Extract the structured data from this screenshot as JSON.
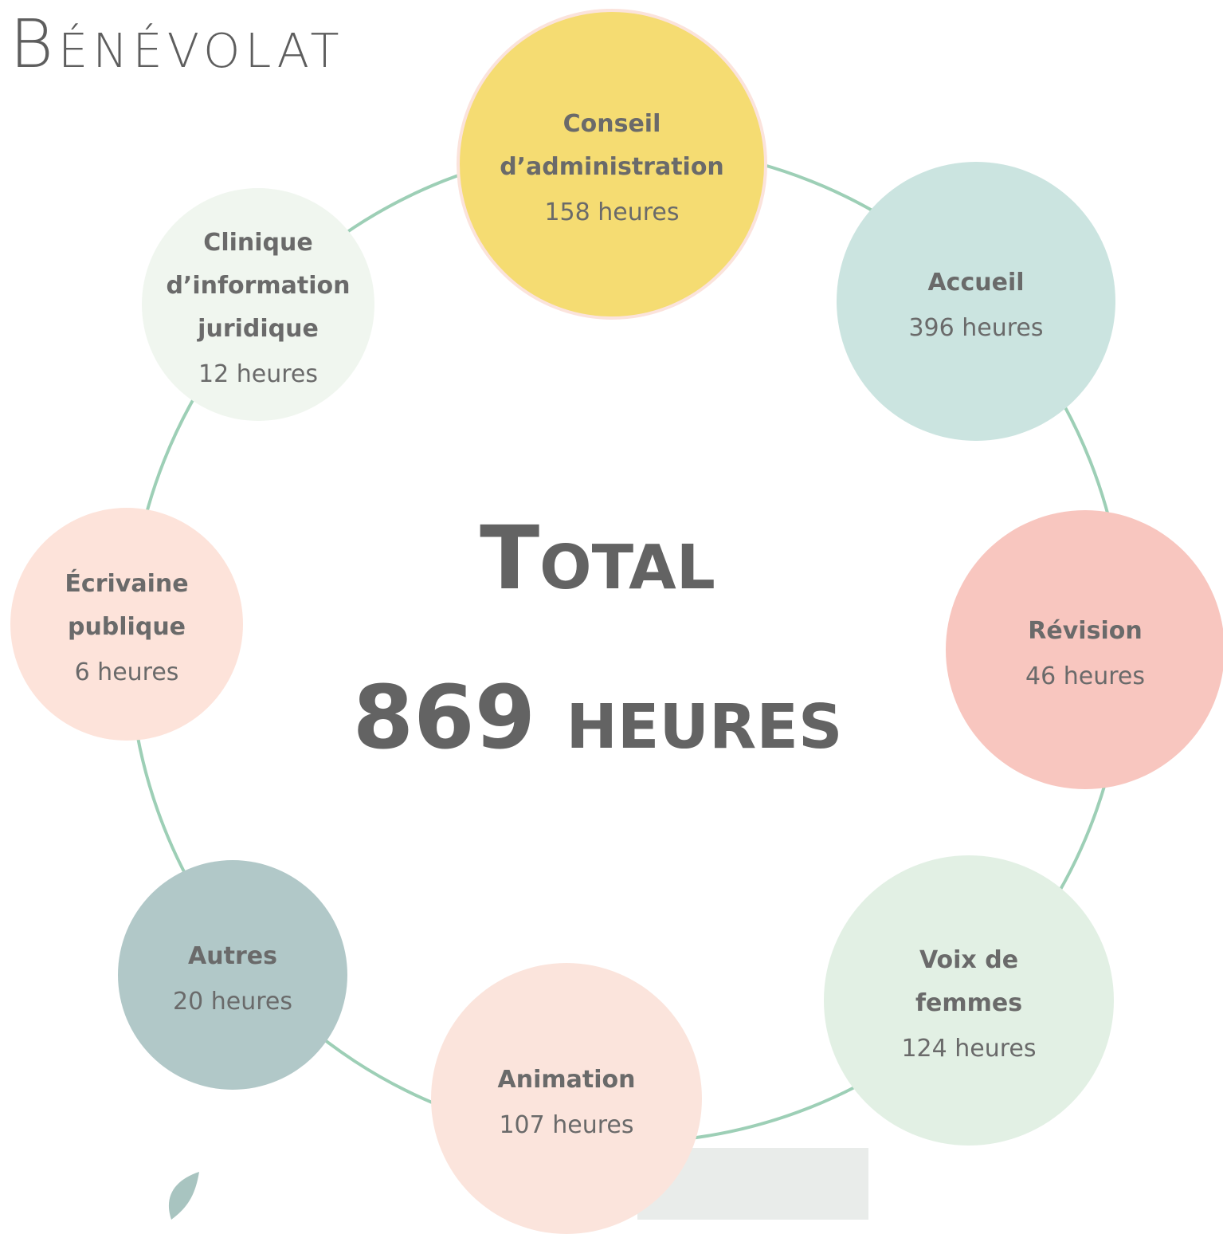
{
  "title": "Bénévolat",
  "total": {
    "label": "Total",
    "value": "869 heures"
  },
  "nodes": [
    {
      "label": [
        "Conseil",
        "d’administration"
      ],
      "hours": "158 heures"
    },
    {
      "label": [
        "Accueil"
      ],
      "hours": "396 heures"
    },
    {
      "label": [
        "Révision"
      ],
      "hours": "46 heures"
    },
    {
      "label": [
        "Voix de",
        "femmes"
      ],
      "hours": "124 heures"
    },
    {
      "label": [
        "Animation"
      ],
      "hours": "107 heures"
    },
    {
      "label": [
        "Autres"
      ],
      "hours": "20 heures"
    },
    {
      "label": [
        "Écrivaine",
        "publique"
      ],
      "hours": "6 heures"
    },
    {
      "label": [
        "Clinique",
        "d’information",
        "juridique"
      ],
      "hours": "12 heures"
    }
  ]
}
